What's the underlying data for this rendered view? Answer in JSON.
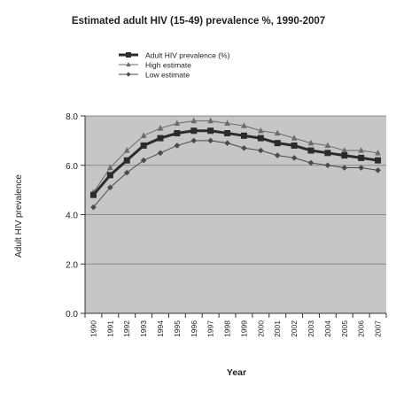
{
  "chart_data": {
    "type": "line",
    "title": "Estimated adult HIV (15-49) prevalence %, 1990-2007",
    "xlabel": "Year",
    "ylabel": "Adult HIV prevalence",
    "categories": [
      "1990",
      "1991",
      "1992",
      "1993",
      "1994",
      "1995",
      "1996",
      "1997",
      "1998",
      "1999",
      "2000",
      "2001",
      "2002",
      "2003",
      "2004",
      "2005",
      "2006",
      "2007"
    ],
    "ylim": [
      0,
      8
    ],
    "yticks": [
      "0.0",
      "2.0",
      "4.0",
      "6.0",
      "8.0"
    ],
    "grid": true,
    "legend_position": "top-left",
    "series": [
      {
        "name": "Adult HIV prevalence (%)",
        "values": [
          4.8,
          5.6,
          6.2,
          6.8,
          7.1,
          7.3,
          7.4,
          7.4,
          7.3,
          7.2,
          7.1,
          6.9,
          6.8,
          6.6,
          6.5,
          6.4,
          6.3,
          6.2
        ],
        "color": "#2b2b2b",
        "marker": "square",
        "style": "thick"
      },
      {
        "name": "High estimate",
        "values": [
          4.9,
          5.9,
          6.6,
          7.2,
          7.5,
          7.7,
          7.8,
          7.8,
          7.7,
          7.6,
          7.4,
          7.3,
          7.1,
          6.9,
          6.8,
          6.6,
          6.6,
          6.5
        ],
        "color": "#6b6b6b",
        "marker": "triangle",
        "style": "thin"
      },
      {
        "name": "Low estimate",
        "values": [
          4.3,
          5.1,
          5.7,
          6.2,
          6.5,
          6.8,
          7.0,
          7.0,
          6.9,
          6.7,
          6.6,
          6.4,
          6.3,
          6.1,
          6.0,
          5.9,
          5.9,
          5.8
        ],
        "color": "#4a4a4a",
        "marker": "diamond",
        "style": "thin"
      }
    ],
    "colors": {
      "plot_background": "#c6c6c6",
      "gridline": "#8a8a8a",
      "axis": "#333333"
    }
  }
}
